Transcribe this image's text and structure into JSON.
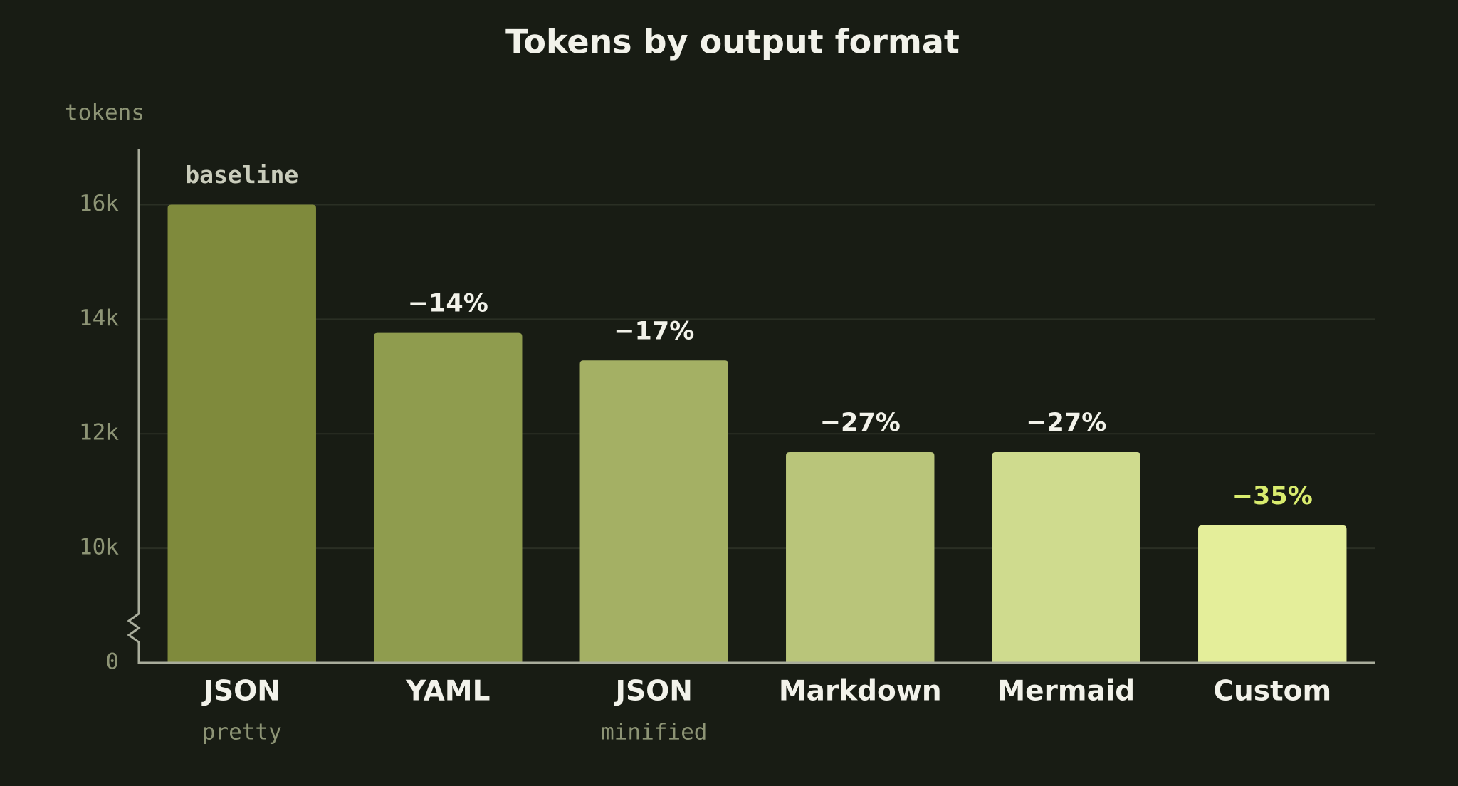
{
  "chart_data": {
    "type": "bar",
    "title": "Tokens by output format",
    "y_label": "tokens",
    "categories": [
      "JSON",
      "YAML",
      "JSON",
      "Markdown",
      "Mermaid",
      "Custom"
    ],
    "subtitles": [
      "pretty",
      null,
      "minified",
      null,
      null,
      null
    ],
    "values": [
      16000,
      13760,
      13280,
      11680,
      11680,
      10400
    ],
    "annotations": [
      "baseline",
      "−14%",
      "−17%",
      "−27%",
      "−27%",
      "−35%"
    ],
    "colors": [
      "#7f8a3c",
      "#8f9c4e",
      "#a4b064",
      "#b9c57a",
      "#cfdb8e",
      "#e4ee9a"
    ],
    "ylim": [
      0,
      17000
    ],
    "axis_break": [
      0,
      8000
    ],
    "yticks": [
      {
        "value": 0,
        "label": "0"
      },
      {
        "value": 10000,
        "label": "10k"
      },
      {
        "value": 12000,
        "label": "12k"
      },
      {
        "value": 14000,
        "label": "14k"
      },
      {
        "value": 16000,
        "label": "16k"
      }
    ],
    "grid": true
  }
}
